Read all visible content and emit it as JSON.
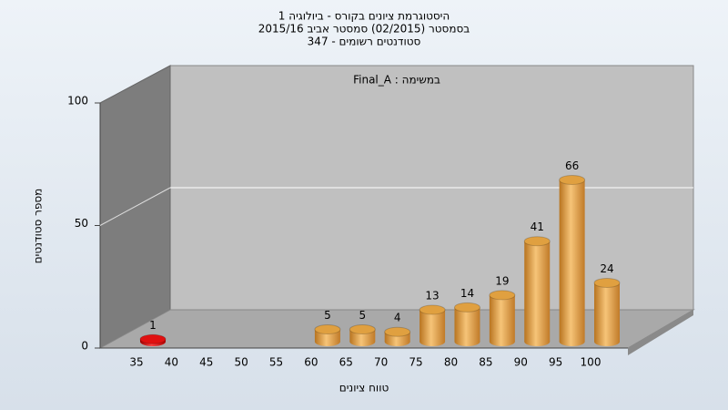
{
  "chart_data": {
    "type": "bar",
    "title_lines": [
      "היסטוגרמת ציונים בקורס - ביולוגיה 1",
      "בסמסטר  (02/2015)  סמסטר אביב 2015/16",
      "347 - סטודנטים רשומים"
    ],
    "annotation": "Final_A : במשימה",
    "x_label": "טווח ציונים",
    "y_label": "מספר סטודנטים",
    "categories": [
      "35",
      "40",
      "45",
      "50",
      "55",
      "60",
      "65",
      "70",
      "75",
      "80",
      "85",
      "90",
      "95",
      "100"
    ],
    "values": [
      1,
      null,
      null,
      null,
      null,
      5,
      5,
      4,
      13,
      14,
      19,
      41,
      66,
      24
    ],
    "colors": [
      "#e01010",
      null,
      null,
      null,
      null,
      "#e0a040",
      "#e0a040",
      "#e0a040",
      "#e0a040",
      "#e0a040",
      "#e0a040",
      "#e0a040",
      "#e0a040",
      "#e0a040"
    ],
    "ylim": [
      0,
      100
    ],
    "yticks": [
      0,
      50,
      100
    ],
    "grid": true
  }
}
